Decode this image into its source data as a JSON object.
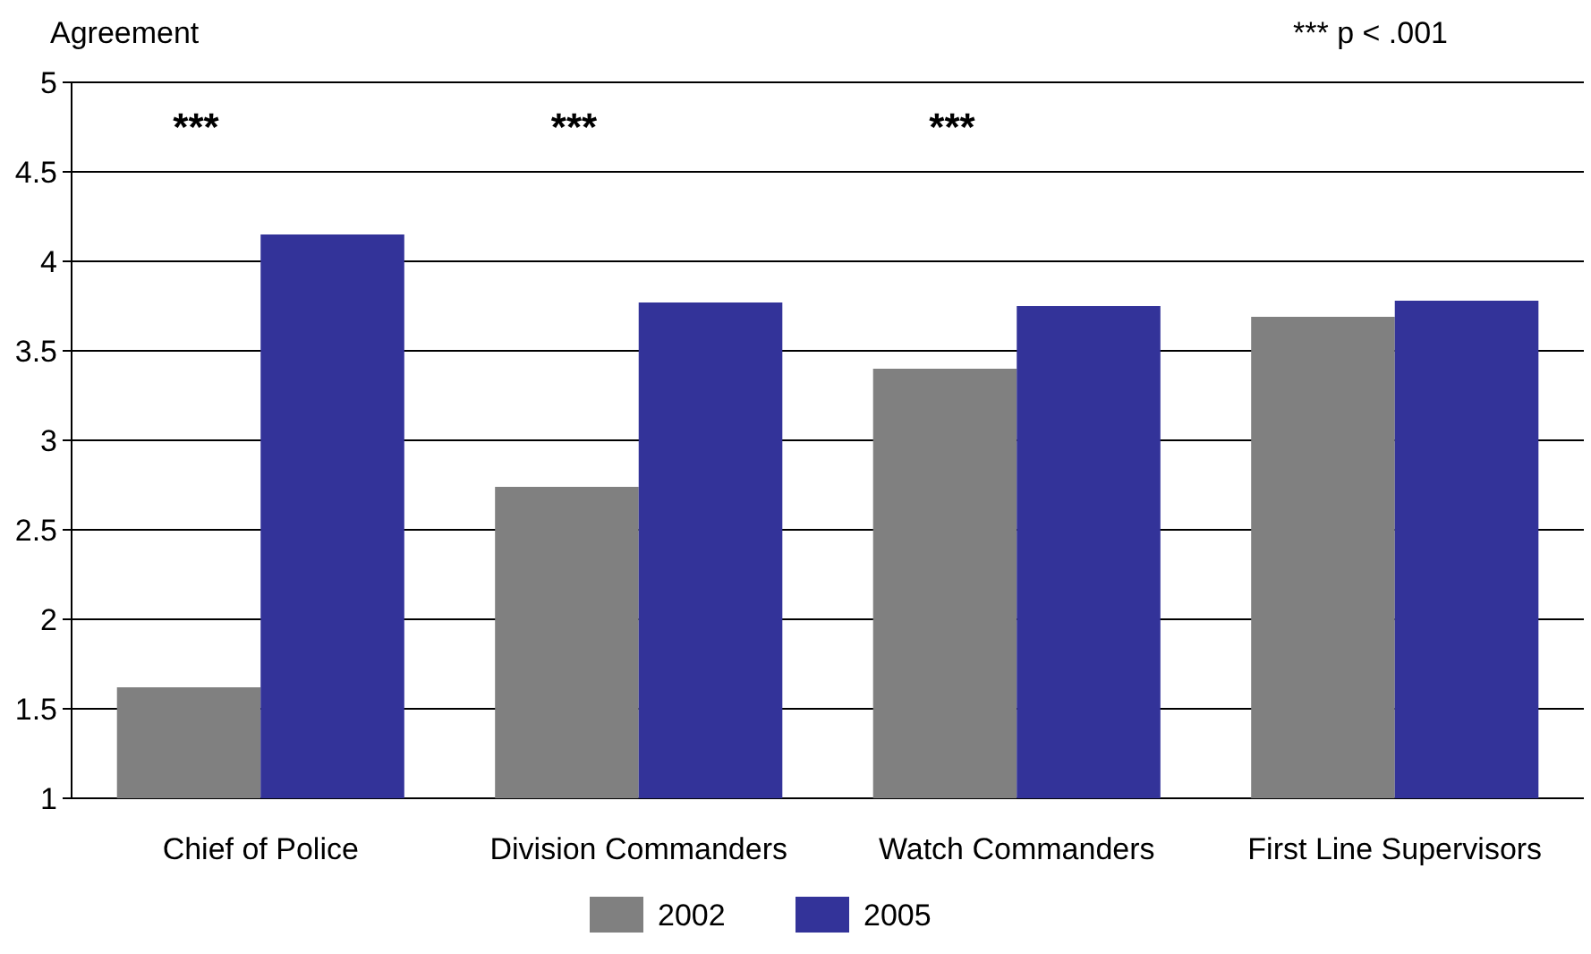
{
  "chart_data": {
    "type": "bar",
    "ylabel": "Agreement",
    "categories": [
      "Chief of Police",
      "Division Commanders",
      "Watch Commanders",
      "First Line Supervisors"
    ],
    "series": [
      {
        "name": "2002",
        "color": "#808080",
        "values": [
          1.62,
          2.74,
          3.4,
          3.69
        ]
      },
      {
        "name": "2005",
        "color": "#333399",
        "values": [
          4.15,
          3.77,
          3.75,
          3.78
        ]
      }
    ],
    "ylim": [
      1,
      5
    ],
    "yticks": [
      1,
      1.5,
      2,
      2.5,
      3,
      3.5,
      4,
      4.5,
      5
    ],
    "grid": "y",
    "legend": "bottom",
    "annotations": [
      "***",
      "***",
      "***",
      "*** p < .001"
    ]
  }
}
